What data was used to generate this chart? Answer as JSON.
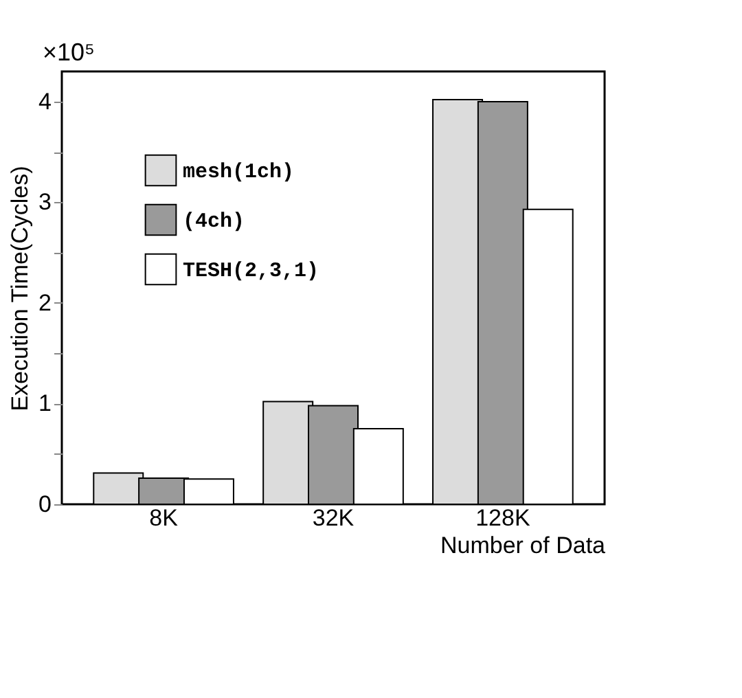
{
  "chart_data": {
    "type": "bar",
    "xlabel": "Number of Data",
    "ylabel": "Execution Time(Cycles)",
    "annotations": [
      "×10⁵"
    ],
    "categories": [
      "8K",
      "32K",
      "128K"
    ],
    "series": [
      {
        "name": "mesh(1ch)",
        "color": "#dcdcdc",
        "values": [
          0.31,
          1.02,
          4.02
        ]
      },
      {
        "name": "(4ch)",
        "color": "#9a9a9a",
        "values": [
          0.26,
          0.98,
          4.0
        ]
      },
      {
        "name": "TESH(2,3,1)",
        "color": "#ffffff",
        "values": [
          0.25,
          0.75,
          2.93
        ]
      }
    ],
    "ylim": [
      0,
      4.3
    ],
    "yticks": [
      0,
      {
        "value": 0.5,
        "label": null
      },
      1,
      {
        "value": 1.5,
        "label": null
      },
      2,
      {
        "value": 2.5,
        "label": null
      },
      3,
      {
        "value": 3.5,
        "label": null
      },
      4
    ],
    "grid": false,
    "legend": "top left"
  }
}
